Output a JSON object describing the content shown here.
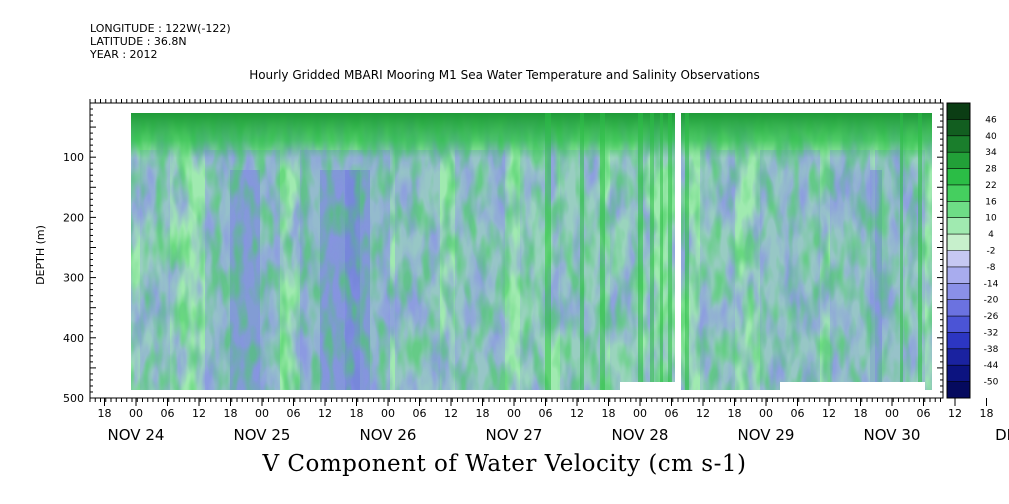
{
  "header": {
    "longitude": "LONGITUDE : 122W(-122)",
    "latitude": "LATITUDE : 36.8N",
    "year": "YEAR : 2012"
  },
  "chart_data": {
    "type": "heatmap",
    "title": "Hourly Gridded MBARI Mooring M1 Sea Water Temperature and Salinity Observations",
    "xlabel": "",
    "ylabel": "DEPTH (m)",
    "variable_label": "V Component of Water Velocity (cm s-1)",
    "y_ticks": [
      "100",
      "200",
      "300",
      "400",
      "500"
    ],
    "y_tick_values": [
      100,
      200,
      300,
      400,
      500
    ],
    "ylim": [
      500,
      10
    ],
    "y_inverted": true,
    "x_hour_labels": [
      "18",
      "00",
      "06",
      "12",
      "18",
      "00",
      "06",
      "12",
      "18",
      "00",
      "06",
      "12",
      "18",
      "00",
      "06",
      "12",
      "18",
      "00",
      "06",
      "12",
      "18",
      "00",
      "06",
      "12",
      "18",
      "00",
      "06",
      "12",
      "18",
      "00",
      "06"
    ],
    "x_day_labels": [
      "NOV 24",
      "NOV 25",
      "NOV 26",
      "NOV 27",
      "NOV 28",
      "NOV 29",
      "NOV 30",
      "DEC 1"
    ],
    "x_range_hours": [
      "2012-11-24T18:00",
      "2012-12-01T06:00"
    ],
    "colorbar_levels": [
      "46",
      "40",
      "34",
      "28",
      "22",
      "16",
      "10",
      "4",
      "-2",
      "-8",
      "-14",
      "-20",
      "-26",
      "-32",
      "-38",
      "-44",
      "-50"
    ],
    "colorbar_colors": [
      "#0b3d14",
      "#125e20",
      "#1a7e2c",
      "#22a038",
      "#2bbd46",
      "#45cf5f",
      "#6edd86",
      "#a0eab0",
      "#c7f0cc",
      "#c6c8f2",
      "#a8acee",
      "#8a90e8",
      "#6b72e0",
      "#4b54d6",
      "#2c36c2",
      "#1a22a0",
      "#0c1380",
      "#050a5e"
    ],
    "missing_data_gap": "2012-11-29T06:00",
    "grid": false,
    "legend": "colorbar right"
  }
}
